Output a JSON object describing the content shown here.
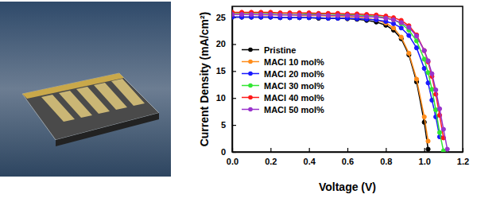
{
  "chart_data": {
    "type": "line",
    "xlabel": "Voltage (V)",
    "ylabel": "Current Density (mA/cm²)",
    "x": [
      0,
      0.05,
      0.1,
      0.15,
      0.2,
      0.25,
      0.3,
      0.35,
      0.4,
      0.45,
      0.5,
      0.55,
      0.6,
      0.65,
      0.7,
      0.75,
      0.8,
      0.84,
      0.88,
      0.92,
      0.96,
      1.0,
      1.02,
      1.04,
      1.06,
      1.08,
      1.1,
      1.12,
      1.13
    ],
    "series": [
      {
        "name": "Pristine",
        "color": "#000000",
        "marker": "circle",
        "values": [
          25.0,
          25.0,
          25.0,
          25.0,
          25.0,
          24.9,
          24.9,
          24.9,
          24.9,
          24.8,
          24.8,
          24.8,
          24.7,
          24.6,
          24.4,
          24.1,
          23.5,
          22.6,
          21.0,
          18.0,
          13.0,
          5.5,
          0.5,
          null,
          null,
          null,
          null,
          null,
          null
        ]
      },
      {
        "name": "MACl 10 mol%",
        "color": "#ff8c1a",
        "marker": "circle",
        "values": [
          25.5,
          25.5,
          25.5,
          25.4,
          25.4,
          25.4,
          25.4,
          25.3,
          25.3,
          25.3,
          25.2,
          25.2,
          25.1,
          25.0,
          24.8,
          24.5,
          23.9,
          23.0,
          21.3,
          18.3,
          13.5,
          6.5,
          2.0,
          null,
          null,
          null,
          null,
          null,
          null
        ]
      },
      {
        "name": "MACl 20 mol%",
        "color": "#1a1aff",
        "marker": "circle",
        "values": [
          25.0,
          25.0,
          25.0,
          25.0,
          25.0,
          24.9,
          24.9,
          24.9,
          24.9,
          24.9,
          24.8,
          24.8,
          24.8,
          24.7,
          24.6,
          24.5,
          24.2,
          23.8,
          23.0,
          21.6,
          19.3,
          15.5,
          12.8,
          9.6,
          6.5,
          2.8,
          null,
          null,
          null
        ]
      },
      {
        "name": "MACl 30 mol%",
        "color": "#33e633",
        "marker": "circle",
        "values": [
          25.8,
          25.8,
          25.8,
          25.8,
          25.7,
          25.7,
          25.7,
          25.7,
          25.6,
          25.6,
          25.6,
          25.5,
          25.5,
          25.4,
          25.3,
          25.2,
          24.9,
          24.5,
          23.8,
          22.6,
          20.6,
          17.2,
          14.7,
          11.6,
          7.8,
          3.6,
          0.2,
          null,
          null
        ]
      },
      {
        "name": "MACl 40 mol%",
        "color": "#ff1a1a",
        "marker": "circle",
        "values": [
          25.9,
          25.9,
          25.9,
          25.9,
          25.9,
          25.8,
          25.8,
          25.8,
          25.8,
          25.7,
          25.7,
          25.7,
          25.6,
          25.6,
          25.5,
          25.4,
          25.2,
          24.9,
          24.4,
          23.4,
          21.7,
          18.8,
          16.7,
          14.0,
          10.7,
          6.8,
          2.6,
          null,
          null
        ]
      },
      {
        "name": "MACl 50 mol%",
        "color": "#9933cc",
        "marker": "circle",
        "values": [
          25.5,
          25.5,
          25.5,
          25.5,
          25.5,
          25.4,
          25.4,
          25.4,
          25.4,
          25.4,
          25.3,
          25.3,
          25.3,
          25.2,
          25.1,
          25.0,
          24.8,
          24.5,
          24.0,
          23.1,
          21.5,
          18.8,
          16.9,
          14.5,
          11.5,
          8.0,
          4.2,
          0.5,
          null
        ]
      }
    ],
    "xlim": [
      0,
      1.2
    ],
    "ylim": [
      0,
      27
    ],
    "xticks": [
      {
        "value": 0,
        "label": "0.0"
      },
      0.2,
      0.4,
      0.6,
      0.8,
      {
        "value": 1,
        "label": "1.0"
      },
      1.2
    ],
    "yticks": [
      0,
      5,
      10,
      15,
      20,
      25
    ],
    "legend": "center-left",
    "grid": false
  }
}
